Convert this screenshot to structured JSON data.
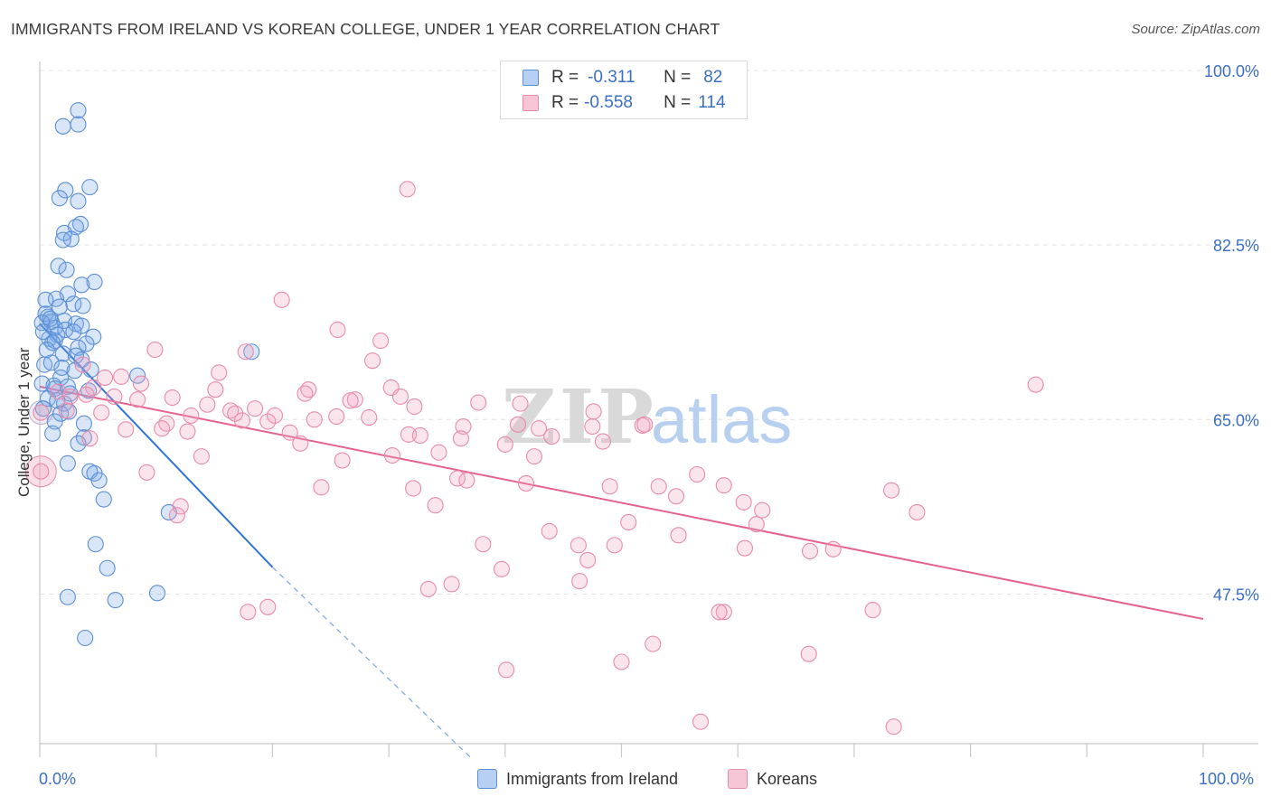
{
  "title": "IMMIGRANTS FROM IRELAND VS KOREAN COLLEGE, UNDER 1 YEAR CORRELATION CHART",
  "source": "Source: ZipAtlas.com",
  "watermark": {
    "zip": "ZIP",
    "atlas": "atlas"
  },
  "legend_top": {
    "rows": [
      {
        "r_label": "R =",
        "r_value": "-0.311",
        "n_label": "N =",
        "n_value": "82"
      },
      {
        "r_label": "R =",
        "r_value": "-0.558",
        "n_label": "N =",
        "n_value": "114"
      }
    ]
  },
  "chart_data": {
    "type": "scatter",
    "title": "IMMIGRANTS FROM IRELAND VS KOREAN COLLEGE, UNDER 1 YEAR CORRELATION CHART",
    "xlabel": "",
    "ylabel": "College, Under 1 year",
    "xlim": [
      0,
      100
    ],
    "ylim": [
      32.5,
      100
    ],
    "x_tick_labels": [
      "0.0%",
      "100.0%"
    ],
    "y_ticks": [
      47.5,
      65.0,
      82.5,
      100.0
    ],
    "y_tick_labels": [
      "47.5%",
      "65.0%",
      "82.5%",
      "100.0%"
    ],
    "grid": true,
    "legend": [
      "Immigrants from Ireland",
      "Koreans"
    ],
    "series": [
      {
        "name": "Immigrants from Ireland",
        "color": "#5b8fd6",
        "R": -0.311,
        "N": 82,
        "trend": {
          "x0": 0,
          "y0": 74.6,
          "x1": 20,
          "y1": 50.2,
          "dash_to_x": 37,
          "dash_to_y": 29.4
        },
        "points": [
          [
            3.3,
            96.0
          ],
          [
            2.0,
            94.4
          ],
          [
            3.3,
            94.6
          ],
          [
            2.2,
            88.0
          ],
          [
            4.3,
            88.3
          ],
          [
            3.3,
            86.9
          ],
          [
            1.7,
            87.2
          ],
          [
            3.5,
            84.6
          ],
          [
            3.1,
            84.3
          ],
          [
            2.1,
            83.7
          ],
          [
            2.7,
            83.1
          ],
          [
            2.0,
            83.0
          ],
          [
            1.6,
            80.4
          ],
          [
            2.3,
            80.0
          ],
          [
            4.7,
            78.8
          ],
          [
            3.6,
            78.5
          ],
          [
            2.4,
            77.6
          ],
          [
            1.4,
            77.1
          ],
          [
            2.9,
            76.6
          ],
          [
            0.5,
            77.0
          ],
          [
            3.7,
            76.4
          ],
          [
            1.7,
            76.3
          ],
          [
            0.5,
            75.6
          ],
          [
            0.7,
            75.3
          ],
          [
            1.0,
            74.8
          ],
          [
            2.1,
            74.9
          ],
          [
            3.1,
            74.6
          ],
          [
            3.6,
            74.4
          ],
          [
            0.2,
            74.7
          ],
          [
            1.3,
            74.2
          ],
          [
            2.2,
            74.0
          ],
          [
            1.5,
            73.5
          ],
          [
            4.6,
            73.3
          ],
          [
            0.8,
            73.1
          ],
          [
            1.3,
            72.9
          ],
          [
            1.1,
            72.7
          ],
          [
            4.0,
            72.6
          ],
          [
            3.3,
            72.2
          ],
          [
            2.0,
            71.6
          ],
          [
            3.1,
            71.4
          ],
          [
            18.2,
            71.8
          ],
          [
            0.4,
            70.5
          ],
          [
            1.0,
            70.7
          ],
          [
            3.6,
            71.0
          ],
          [
            4.4,
            70.0
          ],
          [
            1.8,
            69.2
          ],
          [
            8.4,
            69.4
          ],
          [
            0.2,
            68.6
          ],
          [
            2.4,
            68.3
          ],
          [
            1.3,
            68.1
          ],
          [
            0.7,
            67.1
          ],
          [
            2.1,
            66.6
          ],
          [
            1.8,
            65.6
          ],
          [
            0.3,
            66.1
          ],
          [
            1.3,
            64.8
          ],
          [
            3.8,
            64.6
          ],
          [
            3.8,
            63.2
          ],
          [
            1.1,
            63.6
          ],
          [
            3.3,
            62.6
          ],
          [
            2.4,
            60.6
          ],
          [
            4.3,
            59.8
          ],
          [
            4.7,
            59.6
          ],
          [
            5.1,
            58.9
          ],
          [
            5.5,
            57.0
          ],
          [
            11.1,
            55.7
          ],
          [
            4.8,
            52.5
          ],
          [
            5.8,
            50.1
          ],
          [
            10.1,
            47.6
          ],
          [
            2.4,
            47.2
          ],
          [
            6.5,
            46.9
          ],
          [
            3.9,
            43.1
          ],
          [
            1.2,
            68.4
          ],
          [
            2.6,
            67.6
          ],
          [
            0.6,
            72.0
          ],
          [
            2.9,
            73.8
          ],
          [
            1.9,
            70.2
          ],
          [
            0.9,
            75.1
          ],
          [
            3.0,
            69.9
          ],
          [
            2.5,
            65.8
          ],
          [
            0.3,
            73.8
          ],
          [
            1.5,
            66.9
          ],
          [
            4.2,
            67.9
          ]
        ]
      },
      {
        "name": "Koreans",
        "color": "#e98bab",
        "R": -0.558,
        "N": 114,
        "trend": {
          "x0": 0,
          "y0": 68.3,
          "x1": 100,
          "y1": 45.0
        },
        "points": [
          [
            31.6,
            88.1
          ],
          [
            20.8,
            77.0
          ],
          [
            25.6,
            74.0
          ],
          [
            29.3,
            72.9
          ],
          [
            9.9,
            72.0
          ],
          [
            17.7,
            71.8
          ],
          [
            28.6,
            70.9
          ],
          [
            3.7,
            70.5
          ],
          [
            15.4,
            69.7
          ],
          [
            7.0,
            69.3
          ],
          [
            5.6,
            69.2
          ],
          [
            8.7,
            68.6
          ],
          [
            85.6,
            68.5
          ],
          [
            4.6,
            68.2
          ],
          [
            23.1,
            68.0
          ],
          [
            15.1,
            68.0
          ],
          [
            1.6,
            67.8
          ],
          [
            22.8,
            67.6
          ],
          [
            30.2,
            68.2
          ],
          [
            4.0,
            67.5
          ],
          [
            6.4,
            67.3
          ],
          [
            2.6,
            67.3
          ],
          [
            11.4,
            67.2
          ],
          [
            31.0,
            67.3
          ],
          [
            27.1,
            67.0
          ],
          [
            26.7,
            66.9
          ],
          [
            8.4,
            67.0
          ],
          [
            37.7,
            66.7
          ],
          [
            41.3,
            66.6
          ],
          [
            14.4,
            66.5
          ],
          [
            32.2,
            66.3
          ],
          [
            18.5,
            66.1
          ],
          [
            16.4,
            65.9
          ],
          [
            47.6,
            65.8
          ],
          [
            2.3,
            65.9
          ],
          [
            5.3,
            65.7
          ],
          [
            16.8,
            65.6
          ],
          [
            20.2,
            65.4
          ],
          [
            13.0,
            65.4
          ],
          [
            25.5,
            65.3
          ],
          [
            28.3,
            65.2
          ],
          [
            23.6,
            65.0
          ],
          [
            17.4,
            64.9
          ],
          [
            19.6,
            64.8
          ],
          [
            10.9,
            64.6
          ],
          [
            41.1,
            64.5
          ],
          [
            51.8,
            64.4
          ],
          [
            47.5,
            64.3
          ],
          [
            36.4,
            64.3
          ],
          [
            10.5,
            64.1
          ],
          [
            7.4,
            64.0
          ],
          [
            21.5,
            63.7
          ],
          [
            12.7,
            63.8
          ],
          [
            31.7,
            63.5
          ],
          [
            32.7,
            63.4
          ],
          [
            36.2,
            63.1
          ],
          [
            22.4,
            62.6
          ],
          [
            48.4,
            62.8
          ],
          [
            34.3,
            61.7
          ],
          [
            30.3,
            61.4
          ],
          [
            42.5,
            61.3
          ],
          [
            13.9,
            61.3
          ],
          [
            26.0,
            60.9
          ],
          [
            9.2,
            59.7
          ],
          [
            56.5,
            59.5
          ],
          [
            35.9,
            59.1
          ],
          [
            36.7,
            58.9
          ],
          [
            41.8,
            58.6
          ],
          [
            58.8,
            58.4
          ],
          [
            49.0,
            58.3
          ],
          [
            53.2,
            58.3
          ],
          [
            24.2,
            58.2
          ],
          [
            32.1,
            58.1
          ],
          [
            73.2,
            57.9
          ],
          [
            54.7,
            57.3
          ],
          [
            60.5,
            56.7
          ],
          [
            34.0,
            56.4
          ],
          [
            12.1,
            56.3
          ],
          [
            75.4,
            55.7
          ],
          [
            11.8,
            55.4
          ],
          [
            50.6,
            54.7
          ],
          [
            61.6,
            54.5
          ],
          [
            43.8,
            53.8
          ],
          [
            54.9,
            53.4
          ],
          [
            38.1,
            52.5
          ],
          [
            46.3,
            52.4
          ],
          [
            49.4,
            52.4
          ],
          [
            60.6,
            52.1
          ],
          [
            68.2,
            52.0
          ],
          [
            66.2,
            51.8
          ],
          [
            47.1,
            50.9
          ],
          [
            39.7,
            50.0
          ],
          [
            35.4,
            48.5
          ],
          [
            33.4,
            48.0
          ],
          [
            46.4,
            48.8
          ],
          [
            71.6,
            45.9
          ],
          [
            19.6,
            46.2
          ],
          [
            17.9,
            45.7
          ],
          [
            58.8,
            45.7
          ],
          [
            58.4,
            45.7
          ],
          [
            52.7,
            42.5
          ],
          [
            66.1,
            41.5
          ],
          [
            50.0,
            40.7
          ],
          [
            40.1,
            39.9
          ],
          [
            73.4,
            34.2
          ],
          [
            56.8,
            34.7
          ],
          [
            0.1,
            65.7
          ],
          [
            0.1,
            59.8
          ],
          [
            4.3,
            63.1
          ],
          [
            42.9,
            64.1
          ],
          [
            44.0,
            63.3
          ],
          [
            52.0,
            64.5
          ],
          [
            62.1,
            55.9
          ],
          [
            40.0,
            62.5
          ]
        ]
      }
    ]
  }
}
